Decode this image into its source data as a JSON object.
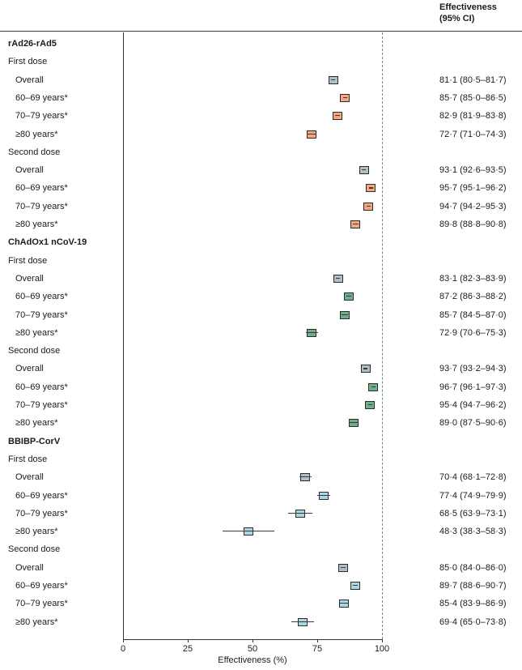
{
  "value_column_header": {
    "line1": "Effectiveness",
    "line2": "(95% CI)"
  },
  "colors": {
    "overall": "#b0bec5",
    "rad26": "#f5a67e",
    "chadox": "#6fae89",
    "bbibp": "#a9d8e3",
    "marker_border": "#2c2c2c",
    "ci_line": "#3a3a3a",
    "axis": "#333333",
    "reference_line": "#5f948a"
  },
  "chart_data": {
    "type": "forest",
    "xlabel": "Effectiveness (%)",
    "xlim": [
      0,
      100
    ],
    "x_ticks": [
      0,
      25,
      50,
      75,
      100
    ],
    "reference_line": 100,
    "value_column_title": "Effectiveness (95% CI)",
    "rows": [
      {
        "kind": "group",
        "label": "rAd26-rAd5"
      },
      {
        "kind": "sub",
        "label": "First dose"
      },
      {
        "kind": "item",
        "label": "Overall",
        "estimate": 81.1,
        "lower": 80.5,
        "upper": 81.7,
        "ci_text": "81·1 (80·5–81·7)",
        "color": "overall"
      },
      {
        "kind": "item",
        "label": "60–69 years*",
        "estimate": 85.7,
        "lower": 85.0,
        "upper": 86.5,
        "ci_text": "85·7 (85·0–86·5)",
        "color": "rad26"
      },
      {
        "kind": "item",
        "label": "70–79 years*",
        "estimate": 82.9,
        "lower": 81.9,
        "upper": 83.8,
        "ci_text": "82·9 (81·9–83·8)",
        "color": "rad26"
      },
      {
        "kind": "item",
        "label": "≥80 years*",
        "estimate": 72.7,
        "lower": 71.0,
        "upper": 74.3,
        "ci_text": "72·7 (71·0–74·3)",
        "color": "rad26"
      },
      {
        "kind": "sub",
        "label": "Second dose"
      },
      {
        "kind": "item",
        "label": "Overall",
        "estimate": 93.1,
        "lower": 92.6,
        "upper": 93.5,
        "ci_text": "93·1 (92·6–93·5)",
        "color": "overall"
      },
      {
        "kind": "item",
        "label": "60–69 years*",
        "estimate": 95.7,
        "lower": 95.1,
        "upper": 96.2,
        "ci_text": "95·7 (95·1–96·2)",
        "color": "rad26"
      },
      {
        "kind": "item",
        "label": "70–79 years*",
        "estimate": 94.7,
        "lower": 94.2,
        "upper": 95.3,
        "ci_text": "94·7 (94·2–95·3)",
        "color": "rad26"
      },
      {
        "kind": "item",
        "label": "≥80 years*",
        "estimate": 89.8,
        "lower": 88.8,
        "upper": 90.8,
        "ci_text": "89·8 (88·8–90·8)",
        "color": "rad26"
      },
      {
        "kind": "group",
        "label": "ChAdOx1 nCoV-19"
      },
      {
        "kind": "sub",
        "label": "First dose"
      },
      {
        "kind": "item",
        "label": "Overall",
        "estimate": 83.1,
        "lower": 82.3,
        "upper": 83.9,
        "ci_text": "83·1 (82·3–83·9)",
        "color": "overall"
      },
      {
        "kind": "item",
        "label": "60–69 years*",
        "estimate": 87.2,
        "lower": 86.3,
        "upper": 88.2,
        "ci_text": "87·2 (86·3–88·2)",
        "color": "chadox"
      },
      {
        "kind": "item",
        "label": "70–79 years*",
        "estimate": 85.7,
        "lower": 84.5,
        "upper": 87.0,
        "ci_text": "85·7 (84·5–87·0)",
        "color": "chadox"
      },
      {
        "kind": "item",
        "label": "≥80 years*",
        "estimate": 72.9,
        "lower": 70.6,
        "upper": 75.3,
        "ci_text": "72·9 (70·6–75·3)",
        "color": "chadox"
      },
      {
        "kind": "sub",
        "label": "Second dose"
      },
      {
        "kind": "item",
        "label": "Overall",
        "estimate": 93.7,
        "lower": 93.2,
        "upper": 94.3,
        "ci_text": "93·7 (93·2–94·3)",
        "color": "overall"
      },
      {
        "kind": "item",
        "label": "60–69 years*",
        "estimate": 96.7,
        "lower": 96.1,
        "upper": 97.3,
        "ci_text": "96·7 (96·1–97·3)",
        "color": "chadox"
      },
      {
        "kind": "item",
        "label": "70–79 years*",
        "estimate": 95.4,
        "lower": 94.7,
        "upper": 96.2,
        "ci_text": "95·4 (94·7–96·2)",
        "color": "chadox"
      },
      {
        "kind": "item",
        "label": "≥80 years*",
        "estimate": 89.0,
        "lower": 87.5,
        "upper": 90.6,
        "ci_text": "89·0 (87·5–90·6)",
        "color": "chadox"
      },
      {
        "kind": "group",
        "label": "BBIBP-CorV"
      },
      {
        "kind": "sub",
        "label": "First dose"
      },
      {
        "kind": "item",
        "label": "Overall",
        "estimate": 70.4,
        "lower": 68.1,
        "upper": 72.8,
        "ci_text": "70·4 (68·1–72·8)",
        "color": "overall"
      },
      {
        "kind": "item",
        "label": "60–69 years*",
        "estimate": 77.4,
        "lower": 74.9,
        "upper": 79.9,
        "ci_text": "77·4 (74·9–79·9)",
        "color": "bbibp"
      },
      {
        "kind": "item",
        "label": "70–79 years*",
        "estimate": 68.5,
        "lower": 63.9,
        "upper": 73.1,
        "ci_text": "68·5 (63·9–73·1)",
        "color": "bbibp"
      },
      {
        "kind": "item",
        "label": "≥80 years*",
        "estimate": 48.3,
        "lower": 38.3,
        "upper": 58.3,
        "ci_text": "48·3 (38·3–58·3)",
        "color": "bbibp"
      },
      {
        "kind": "sub",
        "label": "Second dose"
      },
      {
        "kind": "item",
        "label": "Overall",
        "estimate": 85.0,
        "lower": 84.0,
        "upper": 86.0,
        "ci_text": "85·0 (84·0–86·0)",
        "color": "overall"
      },
      {
        "kind": "item",
        "label": "60–69 years*",
        "estimate": 89.7,
        "lower": 88.6,
        "upper": 90.7,
        "ci_text": "89·7 (88·6–90·7)",
        "color": "bbibp"
      },
      {
        "kind": "item",
        "label": "70–79 years*",
        "estimate": 85.4,
        "lower": 83.9,
        "upper": 86.9,
        "ci_text": "85·4 (83·9–86·9)",
        "color": "bbibp"
      },
      {
        "kind": "item",
        "label": "≥80 years*",
        "estimate": 69.4,
        "lower": 65.0,
        "upper": 73.8,
        "ci_text": "69·4 (65·0–73·8)",
        "color": "bbibp"
      }
    ]
  }
}
